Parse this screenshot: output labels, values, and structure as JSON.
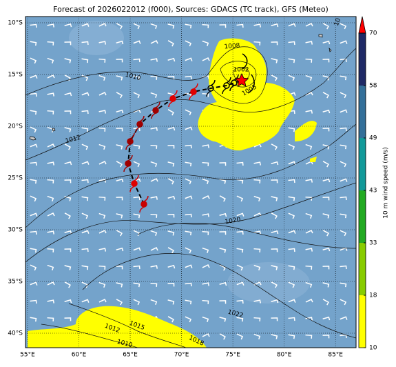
{
  "map": {
    "title": "Forecast of 2026022012 (f000), Sources: GDACS (TC track), GFS (Meteo)",
    "xlim": [
      54.8,
      87
    ],
    "ylim": [
      -41.4,
      -9.4
    ],
    "xticks": [
      {
        "value": 55,
        "label": "55°E"
      },
      {
        "value": 60,
        "label": "60°E"
      },
      {
        "value": 65,
        "label": "65°E"
      },
      {
        "value": 70,
        "label": "70°E"
      },
      {
        "value": 75,
        "label": "75°E"
      },
      {
        "value": 80,
        "label": "80°E"
      },
      {
        "value": 85,
        "label": "85°E"
      }
    ],
    "yticks": [
      {
        "value": -10,
        "label": "10°S"
      },
      {
        "value": -15,
        "label": "15°S"
      },
      {
        "value": -20,
        "label": "20°S"
      },
      {
        "value": -25,
        "label": "25°S"
      },
      {
        "value": -30,
        "label": "30°S"
      },
      {
        "value": -35,
        "label": "35°S"
      },
      {
        "value": -40,
        "label": "40°S"
      }
    ],
    "colorbar": {
      "label": "10 m wind speed (m/s)",
      "ticks": [
        10,
        18,
        33,
        43,
        49,
        58,
        70
      ],
      "colors": [
        "#ffff00",
        "#88cc00",
        "#22aa22",
        "#119999",
        "#336f99",
        "#1f2a66"
      ],
      "extend_color": "#ff0000"
    },
    "contour_labels": [
      "1008",
      "1002",
      "1005",
      "1010",
      "1012",
      "1020",
      "1022",
      "1012",
      "1015",
      "1010",
      "1018",
      "10"
    ]
  }
}
